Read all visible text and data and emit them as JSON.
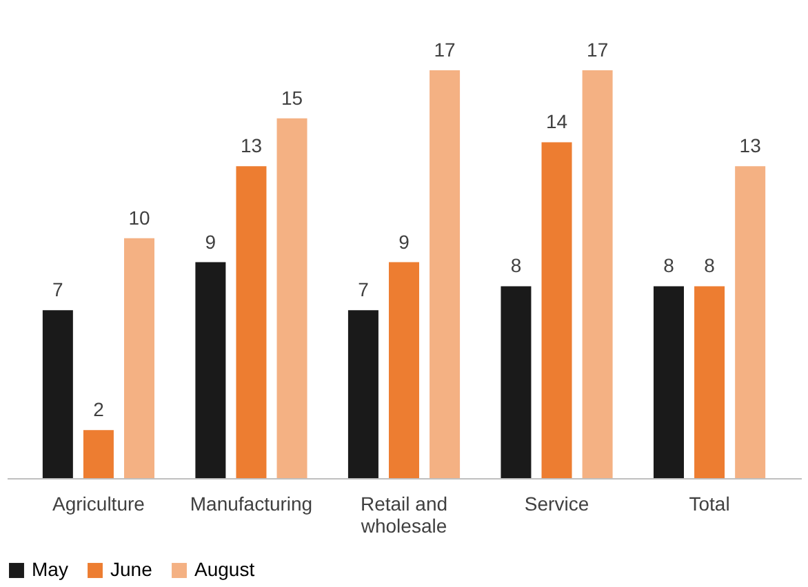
{
  "chart_data": {
    "type": "bar",
    "categories": [
      "Agriculture",
      "Manufacturing",
      "Retail and wholesale",
      "Service",
      "Total"
    ],
    "series": [
      {
        "name": "May",
        "color": "#1a1a1a",
        "values": [
          7,
          9,
          7,
          8,
          8
        ]
      },
      {
        "name": "June",
        "color": "#ed7d31",
        "values": [
          2,
          13,
          9,
          14,
          8
        ]
      },
      {
        "name": "August",
        "color": "#f4b183",
        "values": [
          10,
          15,
          17,
          17,
          13
        ]
      }
    ],
    "data_labels": true,
    "legend": "bottom"
  }
}
